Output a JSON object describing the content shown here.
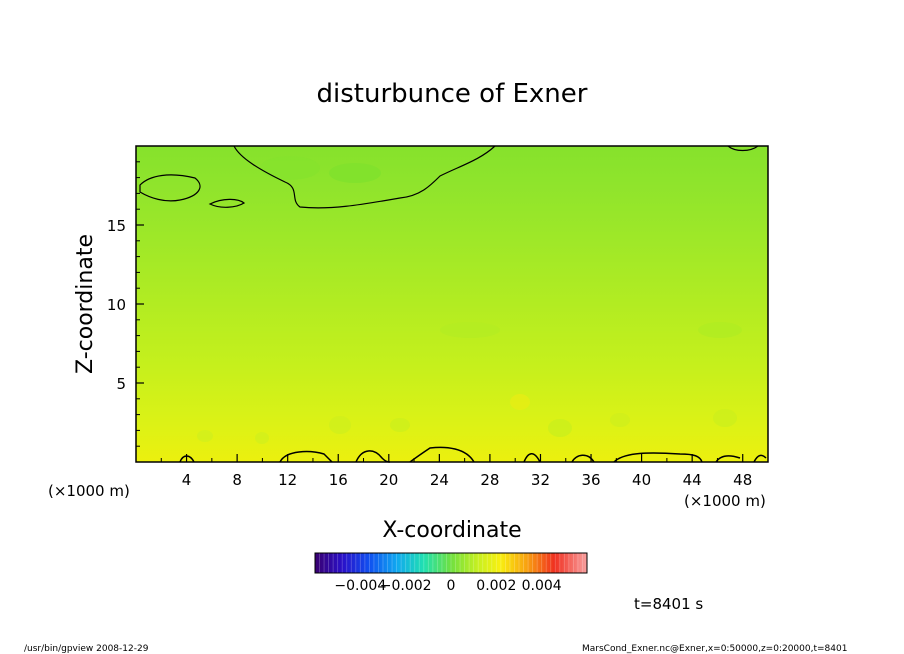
{
  "chart_data": {
    "type": "heatmap",
    "title": "disturbunce of Exner",
    "xlabel": "X-coordinate",
    "ylabel": "Z-coordinate",
    "x_unit_left": "(×1000 m)",
    "x_unit_right": "(×1000 m)",
    "x_ticks": [
      "4",
      "8",
      "12",
      "16",
      "20",
      "24",
      "28",
      "32",
      "36",
      "40",
      "44",
      "48"
    ],
    "y_ticks": [
      "5",
      "10",
      "15"
    ],
    "xlim": [
      0,
      50
    ],
    "ylim": [
      0,
      20
    ],
    "colorbar": {
      "range": [
        -0.006,
        0.006
      ],
      "tick_labels": [
        "−0.004",
        "−0.002",
        "0",
        "0.002",
        "0.004"
      ],
      "tick_values": [
        -0.004,
        -0.002,
        0,
        0.002,
        0.004
      ]
    },
    "field_description_rows": [
      {
        "z_range": [
          18,
          20
        ],
        "value": 0.0002
      },
      {
        "z_range": [
          16,
          18
        ],
        "value": 0.0004
      },
      {
        "z_range": [
          12,
          16
        ],
        "value": 0.0006
      },
      {
        "z_range": [
          8,
          12
        ],
        "value": 0.0009
      },
      {
        "z_range": [
          4,
          8
        ],
        "value": 0.0012
      },
      {
        "z_range": [
          1,
          4
        ],
        "value": 0.0015
      },
      {
        "z_range": [
          0,
          1
        ],
        "value": 0.0018
      }
    ],
    "zero_contour_note": "",
    "time_label": "t=8401 s"
  },
  "footer": {
    "left": "/usr/bin/gpview   2008-12-29",
    "right": "MarsCond_Exner.nc@Exner,x=0:50000,z=0:20000,t=8401"
  }
}
